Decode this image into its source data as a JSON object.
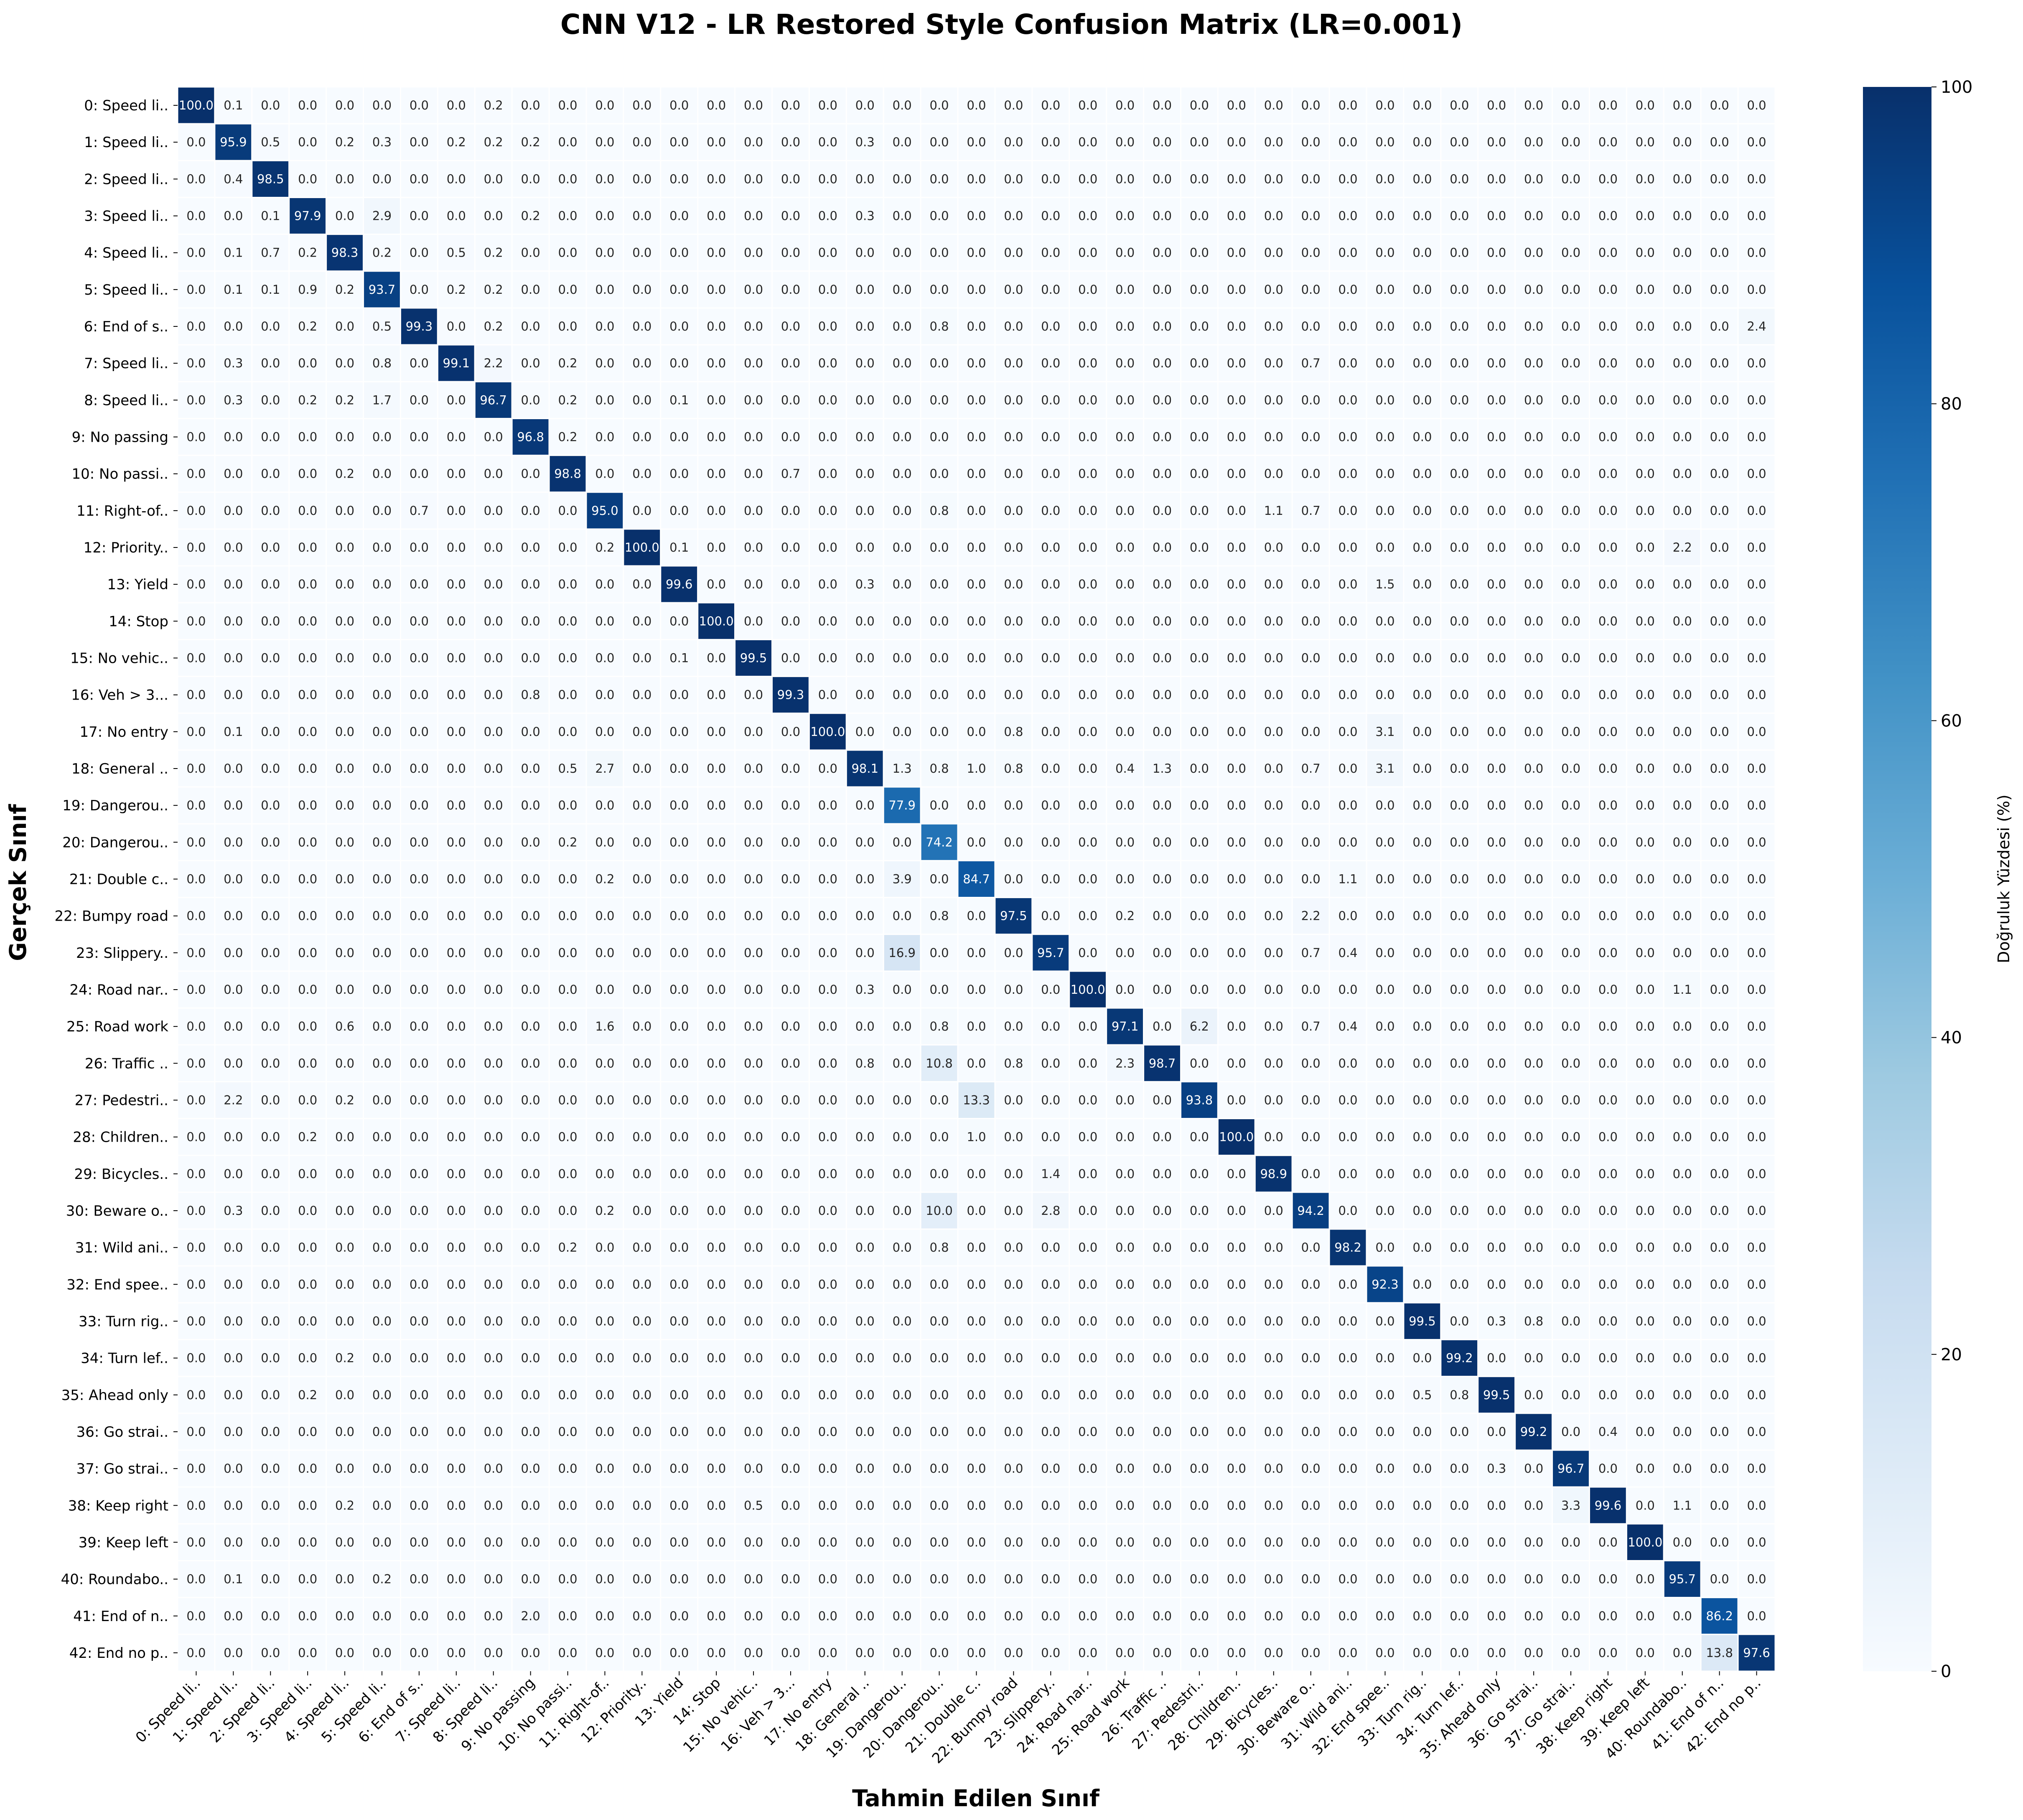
{
  "chart_data": {
    "type": "heatmap",
    "title": "CNN V12 - LR Restored Style Confusion Matrix (LR=0.001)",
    "xlabel": "Tahmin Edilen Sınıf",
    "ylabel": "Gerçek Sınıf",
    "colorbar": {
      "label": "Doğruluk Yüzdesi (%)",
      "ticks": [
        0,
        20,
        40,
        60,
        80,
        100
      ],
      "range": [
        0,
        100
      ],
      "colormap": "Blues"
    },
    "labels": [
      "0: Speed li..",
      "1: Speed li..",
      "2: Speed li..",
      "3: Speed li..",
      "4: Speed li..",
      "5: Speed li..",
      "6: End of s..",
      "7: Speed li..",
      "8: Speed li..",
      "9: No passing",
      "10: No passi..",
      "11: Right-of..",
      "12: Priority..",
      "13: Yield",
      "14: Stop",
      "15: No vehic..",
      "16: Veh > 3...",
      "17: No entry",
      "18: General ..",
      "19: Dangerou..",
      "20: Dangerou..",
      "21: Double c..",
      "22: Bumpy road",
      "23: Slippery..",
      "24: Road nar..",
      "25: Road work",
      "26: Traffic ..",
      "27: Pedestri..",
      "28: Children..",
      "29: Bicycles..",
      "30: Beware o..",
      "31: Wild ani..",
      "32: End spee..",
      "33: Turn rig..",
      "34: Turn lef..",
      "35: Ahead only",
      "36: Go strai..",
      "37: Go strai..",
      "38: Keep right",
      "39: Keep left",
      "40: Roundabo..",
      "41: End of n..",
      "42: End no p.."
    ],
    "diagonal": [
      100.0,
      95.9,
      98.5,
      97.9,
      98.3,
      93.7,
      99.3,
      99.1,
      96.7,
      96.8,
      98.8,
      95.0,
      100.0,
      99.6,
      100.0,
      99.5,
      99.3,
      100.0,
      98.1,
      77.9,
      74.2,
      84.7,
      97.5,
      95.7,
      100.0,
      97.1,
      98.7,
      93.8,
      100.0,
      98.9,
      94.2,
      98.2,
      92.3,
      99.5,
      99.2,
      99.5,
      99.2,
      96.7,
      99.6,
      100.0,
      95.7,
      86.2,
      97.6
    ],
    "off_diagonal": [
      {
        "true": 0,
        "pred": 1,
        "value": 0.1
      },
      {
        "true": 0,
        "pred": 8,
        "value": 0.2
      },
      {
        "true": 1,
        "pred": 2,
        "value": 0.5
      },
      {
        "true": 1,
        "pred": 4,
        "value": 0.2
      },
      {
        "true": 1,
        "pred": 5,
        "value": 0.3
      },
      {
        "true": 1,
        "pred": 7,
        "value": 0.2
      },
      {
        "true": 1,
        "pred": 8,
        "value": 0.2
      },
      {
        "true": 1,
        "pred": 9,
        "value": 0.2
      },
      {
        "true": 1,
        "pred": 18,
        "value": 0.3
      },
      {
        "true": 2,
        "pred": 1,
        "value": 0.4
      },
      {
        "true": 3,
        "pred": 2,
        "value": 0.1
      },
      {
        "true": 3,
        "pred": 5,
        "value": 2.9
      },
      {
        "true": 3,
        "pred": 9,
        "value": 0.2
      },
      {
        "true": 3,
        "pred": 18,
        "value": 0.3
      },
      {
        "true": 4,
        "pred": 1,
        "value": 0.1
      },
      {
        "true": 4,
        "pred": 2,
        "value": 0.7
      },
      {
        "true": 4,
        "pred": 3,
        "value": 0.2
      },
      {
        "true": 4,
        "pred": 5,
        "value": 0.2
      },
      {
        "true": 4,
        "pred": 7,
        "value": 0.5
      },
      {
        "true": 4,
        "pred": 8,
        "value": 0.2
      },
      {
        "true": 5,
        "pred": 1,
        "value": 0.1
      },
      {
        "true": 5,
        "pred": 2,
        "value": 0.1
      },
      {
        "true": 5,
        "pred": 3,
        "value": 0.9
      },
      {
        "true": 5,
        "pred": 4,
        "value": 0.2
      },
      {
        "true": 5,
        "pred": 7,
        "value": 0.2
      },
      {
        "true": 5,
        "pred": 8,
        "value": 0.2
      },
      {
        "true": 6,
        "pred": 3,
        "value": 0.2
      },
      {
        "true": 6,
        "pred": 5,
        "value": 0.5
      },
      {
        "true": 6,
        "pred": 8,
        "value": 0.2
      },
      {
        "true": 6,
        "pred": 20,
        "value": 0.8
      },
      {
        "true": 6,
        "pred": 42,
        "value": 2.4
      },
      {
        "true": 7,
        "pred": 1,
        "value": 0.3
      },
      {
        "true": 7,
        "pred": 5,
        "value": 0.8
      },
      {
        "true": 7,
        "pred": 8,
        "value": 2.2
      },
      {
        "true": 7,
        "pred": 10,
        "value": 0.2
      },
      {
        "true": 7,
        "pred": 30,
        "value": 0.7
      },
      {
        "true": 8,
        "pred": 1,
        "value": 0.3
      },
      {
        "true": 8,
        "pred": 3,
        "value": 0.2
      },
      {
        "true": 8,
        "pred": 4,
        "value": 0.2
      },
      {
        "true": 8,
        "pred": 5,
        "value": 1.7
      },
      {
        "true": 8,
        "pred": 10,
        "value": 0.2
      },
      {
        "true": 8,
        "pred": 13,
        "value": 0.1
      },
      {
        "true": 9,
        "pred": 10,
        "value": 0.2
      },
      {
        "true": 10,
        "pred": 4,
        "value": 0.2
      },
      {
        "true": 10,
        "pred": 16,
        "value": 0.7
      },
      {
        "true": 11,
        "pred": 6,
        "value": 0.7
      },
      {
        "true": 11,
        "pred": 20,
        "value": 0.8
      },
      {
        "true": 11,
        "pred": 29,
        "value": 1.1
      },
      {
        "true": 11,
        "pred": 30,
        "value": 0.7
      },
      {
        "true": 12,
        "pred": 11,
        "value": 0.2
      },
      {
        "true": 12,
        "pred": 13,
        "value": 0.1
      },
      {
        "true": 12,
        "pred": 40,
        "value": 2.2
      },
      {
        "true": 13,
        "pred": 18,
        "value": 0.3
      },
      {
        "true": 13,
        "pred": 32,
        "value": 1.5
      },
      {
        "true": 15,
        "pred": 13,
        "value": 0.1
      },
      {
        "true": 16,
        "pred": 9,
        "value": 0.8
      },
      {
        "true": 17,
        "pred": 1,
        "value": 0.1
      },
      {
        "true": 17,
        "pred": 22,
        "value": 0.8
      },
      {
        "true": 17,
        "pred": 32,
        "value": 3.1
      },
      {
        "true": 18,
        "pred": 10,
        "value": 0.5
      },
      {
        "true": 18,
        "pred": 11,
        "value": 2.7
      },
      {
        "true": 18,
        "pred": 19,
        "value": 1.3
      },
      {
        "true": 18,
        "pred": 20,
        "value": 0.8
      },
      {
        "true": 18,
        "pred": 21,
        "value": 1.0
      },
      {
        "true": 18,
        "pred": 22,
        "value": 0.8
      },
      {
        "true": 18,
        "pred": 25,
        "value": 0.4
      },
      {
        "true": 18,
        "pred": 26,
        "value": 1.3
      },
      {
        "true": 18,
        "pred": 30,
        "value": 0.7
      },
      {
        "true": 18,
        "pred": 32,
        "value": 3.1
      },
      {
        "true": 20,
        "pred": 10,
        "value": 0.2
      },
      {
        "true": 21,
        "pred": 11,
        "value": 0.2
      },
      {
        "true": 21,
        "pred": 19,
        "value": 3.9
      },
      {
        "true": 21,
        "pred": 31,
        "value": 1.1
      },
      {
        "true": 22,
        "pred": 20,
        "value": 0.8
      },
      {
        "true": 22,
        "pred": 25,
        "value": 0.2
      },
      {
        "true": 22,
        "pred": 30,
        "value": 2.2
      },
      {
        "true": 23,
        "pred": 19,
        "value": 16.9
      },
      {
        "true": 23,
        "pred": 30,
        "value": 0.7
      },
      {
        "true": 23,
        "pred": 31,
        "value": 0.4
      },
      {
        "true": 24,
        "pred": 18,
        "value": 0.3
      },
      {
        "true": 24,
        "pred": 40,
        "value": 1.1
      },
      {
        "true": 25,
        "pred": 4,
        "value": 0.6
      },
      {
        "true": 25,
        "pred": 11,
        "value": 1.6
      },
      {
        "true": 25,
        "pred": 20,
        "value": 0.8
      },
      {
        "true": 25,
        "pred": 27,
        "value": 6.2
      },
      {
        "true": 25,
        "pred": 30,
        "value": 0.7
      },
      {
        "true": 25,
        "pred": 31,
        "value": 0.4
      },
      {
        "true": 26,
        "pred": 18,
        "value": 0.8
      },
      {
        "true": 26,
        "pred": 20,
        "value": 10.8
      },
      {
        "true": 26,
        "pred": 22,
        "value": 0.8
      },
      {
        "true": 26,
        "pred": 25,
        "value": 2.3
      },
      {
        "true": 27,
        "pred": 1,
        "value": 2.2
      },
      {
        "true": 27,
        "pred": 4,
        "value": 0.2
      },
      {
        "true": 27,
        "pred": 21,
        "value": 13.3
      },
      {
        "true": 28,
        "pred": 3,
        "value": 0.2
      },
      {
        "true": 28,
        "pred": 21,
        "value": 1.0
      },
      {
        "true": 29,
        "pred": 23,
        "value": 1.4
      },
      {
        "true": 30,
        "pred": 1,
        "value": 0.3
      },
      {
        "true": 30,
        "pred": 11,
        "value": 0.2
      },
      {
        "true": 30,
        "pred": 20,
        "value": 10.0
      },
      {
        "true": 30,
        "pred": 23,
        "value": 2.8
      },
      {
        "true": 31,
        "pred": 10,
        "value": 0.2
      },
      {
        "true": 31,
        "pred": 20,
        "value": 0.8
      },
      {
        "true": 33,
        "pred": 35,
        "value": 0.3
      },
      {
        "true": 33,
        "pred": 36,
        "value": 0.8
      },
      {
        "true": 34,
        "pred": 4,
        "value": 0.2
      },
      {
        "true": 35,
        "pred": 3,
        "value": 0.2
      },
      {
        "true": 35,
        "pred": 33,
        "value": 0.5
      },
      {
        "true": 35,
        "pred": 34,
        "value": 0.8
      },
      {
        "true": 36,
        "pred": 38,
        "value": 0.4
      },
      {
        "true": 37,
        "pred": 35,
        "value": 0.3
      },
      {
        "true": 38,
        "pred": 4,
        "value": 0.2
      },
      {
        "true": 38,
        "pred": 15,
        "value": 0.5
      },
      {
        "true": 38,
        "pred": 37,
        "value": 3.3
      },
      {
        "true": 38,
        "pred": 40,
        "value": 1.1
      },
      {
        "true": 40,
        "pred": 1,
        "value": 0.1
      },
      {
        "true": 40,
        "pred": 5,
        "value": 0.2
      },
      {
        "true": 41,
        "pred": 9,
        "value": 2.0
      },
      {
        "true": 42,
        "pred": 41,
        "value": 13.8
      }
    ],
    "default_cell_value": 0.0
  }
}
